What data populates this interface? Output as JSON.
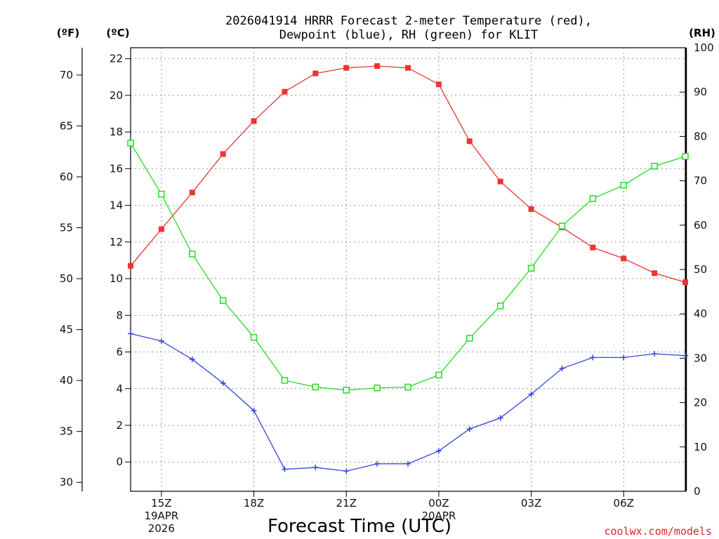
{
  "chart_data": {
    "type": "line",
    "title_line1": "2026041914 HRRR Forecast 2-meter Temperature (red),",
    "title_line2": "Dewpoint (blue), RH (green) for KLIT",
    "unit_left_f": "(ºF)",
    "unit_left_c": "(ºC)",
    "unit_right_rh": "(RH)",
    "xlabel": "Forecast Time (UTC)",
    "credit": "coolwx.com/models",
    "x_hours": [
      14,
      15,
      16,
      17,
      18,
      19,
      20,
      21,
      22,
      23,
      24,
      25,
      26,
      27,
      28,
      29,
      30,
      31,
      32
    ],
    "x_range": [
      14,
      32
    ],
    "x_ticks": [
      {
        "hour": 15,
        "label": "15Z",
        "sub1": "19APR",
        "sub2": "2026"
      },
      {
        "hour": 18,
        "label": "18Z",
        "sub1": "",
        "sub2": ""
      },
      {
        "hour": 21,
        "label": "21Z",
        "sub1": "",
        "sub2": ""
      },
      {
        "hour": 24,
        "label": "00Z",
        "sub1": "20APR",
        "sub2": ""
      },
      {
        "hour": 27,
        "label": "03Z",
        "sub1": "",
        "sub2": ""
      },
      {
        "hour": 30,
        "label": "06Z",
        "sub1": "",
        "sub2": ""
      }
    ],
    "celsius_axis": {
      "range": [
        -1.6,
        22.6
      ],
      "ticks": [
        0,
        2,
        4,
        6,
        8,
        10,
        12,
        14,
        16,
        18,
        20,
        22
      ]
    },
    "fahrenheit_axis": {
      "ticks": [
        30,
        35,
        40,
        45,
        50,
        55,
        60,
        65,
        70
      ]
    },
    "rh_axis": {
      "range": [
        0,
        100
      ],
      "ticks": [
        0,
        10,
        20,
        30,
        40,
        50,
        60,
        70,
        80,
        90,
        100
      ]
    },
    "series": [
      {
        "name": "Temperature",
        "unit": "C",
        "color": "#ee3333",
        "marker": "filled-square",
        "values": [
          10.7,
          12.7,
          14.7,
          16.8,
          18.6,
          20.2,
          21.2,
          21.5,
          21.6,
          21.5,
          20.6,
          17.5,
          15.3,
          13.8,
          12.8,
          11.7,
          11.1,
          10.3,
          9.8
        ]
      },
      {
        "name": "Dewpoint",
        "unit": "C",
        "color": "#3344dd",
        "marker": "plus",
        "values": [
          7.0,
          6.6,
          5.6,
          4.3,
          2.8,
          -0.4,
          -0.3,
          -0.5,
          -0.1,
          -0.1,
          0.6,
          1.8,
          2.4,
          3.7,
          5.1,
          5.7,
          5.7,
          5.9,
          5.8
        ]
      },
      {
        "name": "RH",
        "unit": "%",
        "color": "#22dd22",
        "marker": "open-square",
        "values": [
          78.5,
          67.0,
          53.5,
          43.0,
          34.7,
          25.0,
          23.5,
          22.8,
          23.3,
          23.5,
          26.2,
          34.5,
          41.8,
          50.3,
          59.8,
          66.0,
          69.0,
          73.3,
          75.5
        ]
      }
    ]
  }
}
